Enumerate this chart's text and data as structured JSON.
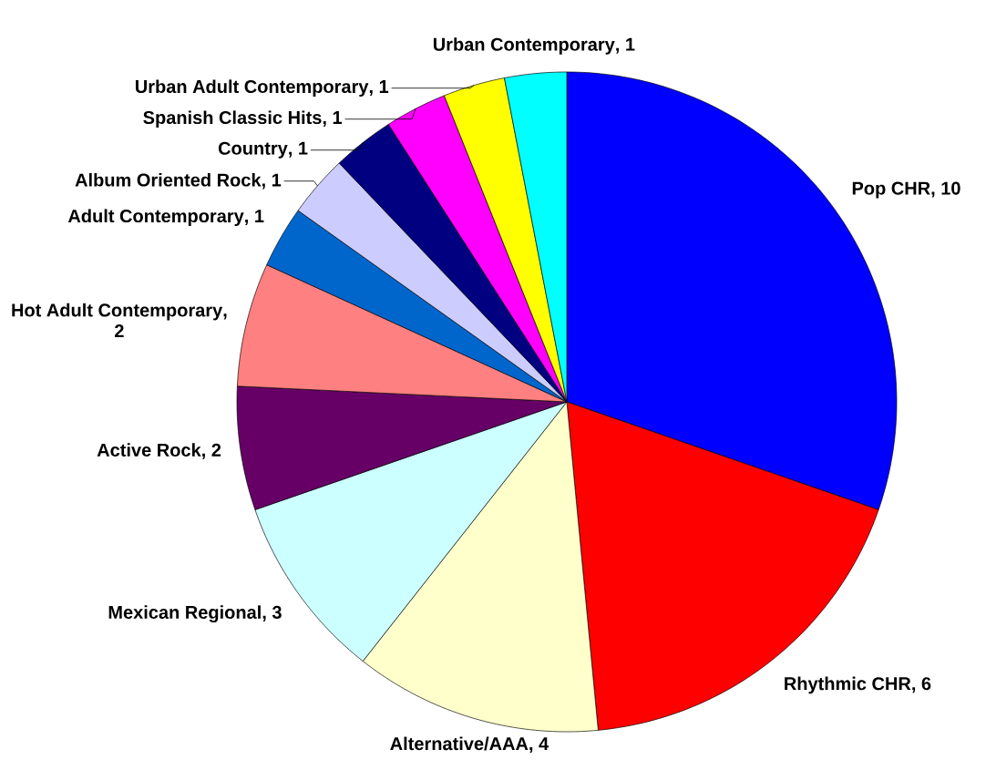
{
  "chart_data": {
    "type": "pie",
    "categories": [
      "Pop CHR",
      "Rhythmic CHR",
      "Alternative/AAA",
      "Mexican Regional",
      "Active Rock",
      "Hot Adult Contemporary",
      "Adult Contemporary",
      "Album Oriented Rock",
      "Country",
      "Spanish Classic Hits",
      "Urban Adult Contemporary",
      "Urban Contemporary"
    ],
    "values": [
      10,
      6,
      4,
      3,
      2,
      2,
      1,
      1,
      1,
      1,
      1,
      1
    ],
    "value_labels": [
      ", 10",
      ", 6",
      ", 4",
      ", 3",
      ", 2",
      ", 2",
      ", 1",
      ", 1",
      ", 1",
      ", 1",
      ", 1",
      ", 1"
    ],
    "colors": [
      "#0000ff",
      "#ff0000",
      "#ffffcc",
      "#ccffff",
      "#660066",
      "#ff8080",
      "#0066cc",
      "#ccccff",
      "#000080",
      "#ff00ff",
      "#ffff00",
      "#00ffff"
    ]
  }
}
